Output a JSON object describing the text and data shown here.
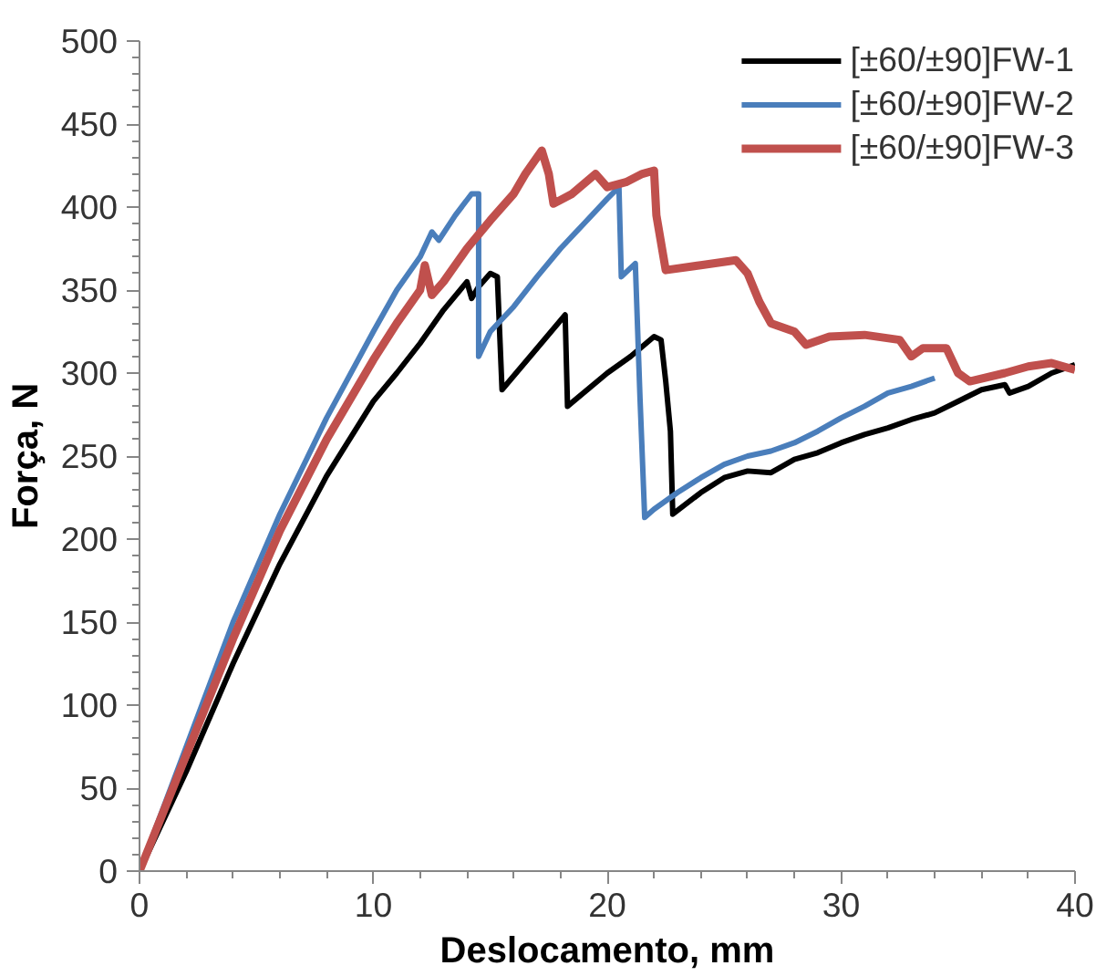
{
  "chart_data": {
    "type": "line",
    "xlabel": "Deslocamento, mm",
    "ylabel": "Força, N",
    "xlim": [
      0,
      40
    ],
    "ylim": [
      0,
      500
    ],
    "xticks": [
      0,
      10,
      20,
      30,
      40
    ],
    "yticks": [
      0,
      50,
      100,
      150,
      200,
      250,
      300,
      350,
      400,
      450,
      500
    ],
    "grid": false,
    "legend": "top right",
    "marker": "none",
    "line_style": "solid",
    "series": [
      {
        "name": "[±60/±90]FW-1",
        "color": "#000000",
        "x": [
          0,
          2,
          4,
          6,
          8,
          10,
          11,
          12,
          13,
          14,
          14.2,
          14.5,
          15,
          15.3,
          15.5,
          17,
          18.2,
          18.3,
          20,
          21,
          22,
          22.3,
          22.5,
          22.7,
          22.8,
          24,
          25,
          26,
          27,
          28,
          29,
          30,
          31,
          32,
          33,
          34,
          35,
          36,
          37,
          37.2,
          38,
          39,
          40
        ],
        "values": [
          0,
          60,
          125,
          185,
          238,
          283,
          300,
          318,
          338,
          355,
          345,
          352,
          360,
          358,
          290,
          315,
          335,
          280,
          300,
          310,
          322,
          320,
          295,
          265,
          215,
          228,
          237,
          241,
          240,
          248,
          252,
          258,
          263,
          267,
          272,
          276,
          283,
          290,
          293,
          288,
          292,
          300,
          305
        ]
      },
      {
        "name": "[±60/±90]FW-2",
        "color": "#4a7ebb",
        "x": [
          0,
          2,
          4,
          6,
          8,
          10,
          11,
          12,
          12.5,
          12.8,
          13.5,
          14.2,
          14.5,
          14.5,
          15,
          16,
          17,
          18,
          19,
          20,
          20.5,
          20.6,
          21.2,
          21.4,
          21.6,
          22,
          23,
          24,
          25,
          26,
          27,
          28,
          29,
          30,
          31,
          32,
          33,
          34
        ],
        "values": [
          0,
          75,
          150,
          215,
          273,
          325,
          350,
          370,
          385,
          380,
          395,
          408,
          408,
          310,
          325,
          340,
          358,
          375,
          390,
          405,
          412,
          358,
          366,
          285,
          213,
          218,
          228,
          237,
          245,
          250,
          253,
          258,
          265,
          273,
          280,
          288,
          292,
          297
        ]
      },
      {
        "name": "[±60/±90]FW-3",
        "color": "#c0504d",
        "x": [
          0,
          2,
          4,
          6,
          8,
          10,
          11,
          12,
          12.2,
          12.5,
          13,
          14,
          15,
          16,
          16.5,
          17,
          17.2,
          17.5,
          17.7,
          18.5,
          19.5,
          20,
          20.8,
          21.5,
          22,
          22.1,
          22.5,
          24,
          25.5,
          26,
          26.5,
          27,
          28,
          28.5,
          29.5,
          31,
          32.5,
          33,
          33.5,
          34.5,
          35,
          35.5,
          37,
          38,
          39,
          40
        ],
        "values": [
          0,
          70,
          140,
          205,
          260,
          308,
          330,
          350,
          365,
          347,
          355,
          375,
          392,
          408,
          420,
          430,
          434,
          420,
          402,
          408,
          420,
          412,
          415,
          420,
          422,
          395,
          362,
          365,
          368,
          360,
          343,
          330,
          325,
          317,
          322,
          323,
          320,
          310,
          315,
          315,
          300,
          295,
          300,
          304,
          306,
          302
        ]
      }
    ]
  }
}
